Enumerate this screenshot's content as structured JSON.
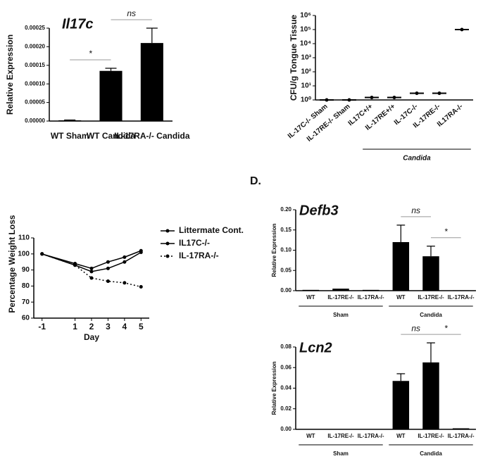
{
  "chart_data": [
    {
      "type": "bar",
      "title": "Il17c",
      "y_label": "Relative Expression",
      "categories": [
        "WT Sham",
        "WT Candida",
        "IL-17RA-/- Candida"
      ],
      "values": [
        2e-06,
        0.000135,
        0.00021
      ],
      "errors": [
        1e-06,
        7e-06,
        4e-05
      ],
      "color": "#000000",
      "ylim": [
        0,
        0.00025
      ],
      "yticks": [
        {
          "value": 0,
          "label": "0.00000"
        },
        {
          "value": 5e-05,
          "label": "0.00005"
        },
        {
          "value": 0.0001,
          "label": "0.00010"
        },
        {
          "value": 0.00015,
          "label": "0.00015"
        },
        {
          "value": 0.0002,
          "label": "0.00020"
        },
        {
          "value": 0.00025,
          "label": "0.00025"
        }
      ],
      "annotations": [
        "*",
        "ns"
      ]
    },
    {
      "type": "dot",
      "y_label": "CFU/g Tongue Tissue",
      "log_scale": true,
      "categories": [
        "IL-17C-/- Sham",
        "IL-17RE-/- Sham",
        "IL17C+/+",
        "IL-17RE+/+",
        "IL-17C-/-",
        "IL-17RE-/-",
        "IL17RA-/-"
      ],
      "values": [
        1,
        1,
        1.5,
        1.5,
        3,
        3,
        100000
      ],
      "color": "#000000",
      "ylim": [
        1,
        1000000
      ],
      "yticks": [
        {
          "value": 1,
          "label": "10⁰"
        },
        {
          "value": 10,
          "label": "10¹"
        },
        {
          "value": 100,
          "label": "10²"
        },
        {
          "value": 1000,
          "label": "10³"
        },
        {
          "value": 10000,
          "label": "10⁴"
        },
        {
          "value": 100000,
          "label": "10⁵"
        },
        {
          "value": 1000000,
          "label": "10⁶"
        }
      ],
      "groups": [
        "Candida"
      ]
    },
    {
      "type": "line",
      "x_label": "Day",
      "y_label": "Percentage Weight Loss",
      "x": [
        -1,
        1,
        2,
        3,
        4,
        5
      ],
      "series": [
        {
          "name": "Littermate Cont.",
          "color": "#000000",
          "style": "solid",
          "values": [
            100,
            94,
            91,
            95,
            98,
            102
          ]
        },
        {
          "name": "IL17C-/-",
          "color": "#000000",
          "style": "solid",
          "values": [
            100,
            93,
            89,
            91,
            95,
            101
          ]
        },
        {
          "name": "IL-17RA-/-",
          "color": "#000000",
          "style": "dotted",
          "values": [
            100,
            93,
            85,
            83,
            82,
            79.5
          ]
        }
      ],
      "xlim": [
        -1.5,
        5.5
      ],
      "xticks": [
        -1,
        1,
        2,
        3,
        4,
        5
      ],
      "ylim": [
        60,
        110
      ],
      "yticks": [
        60,
        70,
        80,
        90,
        100,
        110
      ]
    },
    {
      "type": "bar",
      "panel": "D.",
      "title": "Defb3",
      "y_label": "Relative Expression",
      "categories": [
        "WT",
        "IL-17RE-/-",
        "IL-17RA-/-",
        "WT",
        "IL-17RE-/-",
        "IL-17RA-/-"
      ],
      "values": [
        0.002,
        0.005,
        0.002,
        0.12,
        0.085,
        0.001
      ],
      "errors": [
        0,
        0,
        0,
        0.042,
        0.025,
        0
      ],
      "color": "#000000",
      "ylim": [
        0,
        0.2
      ],
      "yticks": [
        {
          "value": 0,
          "label": "0.00"
        },
        {
          "value": 0.05,
          "label": "0.05"
        },
        {
          "value": 0.1,
          "label": "0.10"
        },
        {
          "value": 0.15,
          "label": "0.15"
        },
        {
          "value": 0.2,
          "label": "0.20"
        }
      ],
      "annotations": [
        "ns",
        "*"
      ],
      "groups": [
        "Sham",
        "Candida"
      ]
    },
    {
      "type": "bar",
      "title": "Lcn2",
      "y_label": "Relative Expression",
      "categories": [
        "WT",
        "IL-17RE-/-",
        "IL-17RA-/-",
        "WT",
        "IL-17RE-/-",
        "IL-17RA-/-"
      ],
      "values": [
        0,
        0,
        0,
        0.047,
        0.065,
        0.001
      ],
      "errors": [
        0,
        0,
        0,
        0.007,
        0.019,
        0
      ],
      "color": "#000000",
      "ylim": [
        0,
        0.08
      ],
      "yticks": [
        {
          "value": 0,
          "label": "0.00"
        },
        {
          "value": 0.02,
          "label": "0.02"
        },
        {
          "value": 0.04,
          "label": "0.04"
        },
        {
          "value": 0.06,
          "label": "0.06"
        },
        {
          "value": 0.08,
          "label": "0.08"
        }
      ],
      "annotations": [
        "ns",
        "*"
      ],
      "groups": [
        "Sham",
        "Candida"
      ]
    }
  ]
}
